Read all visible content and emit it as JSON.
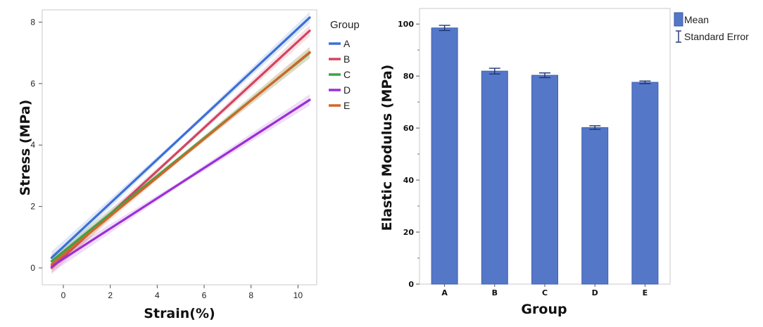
{
  "chart_data": [
    {
      "type": "line",
      "xlabel": "Strain(%)",
      "ylabel": "Stress (MPa)",
      "xlim": [
        -0.9,
        10.8
      ],
      "ylim": [
        -0.55,
        8.4
      ],
      "xticks": [
        "0",
        "2",
        "4",
        "6",
        "8",
        "10"
      ],
      "yticks": [
        "0",
        "2",
        "4",
        "6",
        "8"
      ],
      "legend_title": "Group",
      "legend_position": "right",
      "grid": false,
      "x_range": [
        -0.5,
        10.5
      ],
      "series": [
        {
          "name": "A",
          "color": "#3c6fd6",
          "y_start": 0.33,
          "y_end": 8.15
        },
        {
          "name": "B",
          "color": "#d14560",
          "y_start": 0.0,
          "y_end": 7.72
        },
        {
          "name": "C",
          "color": "#3aa444",
          "y_start": 0.22,
          "y_end": 7.0
        },
        {
          "name": "D",
          "color": "#9b2fd6",
          "y_start": 0.05,
          "y_end": 5.47
        },
        {
          "name": "E",
          "color": "#d0672a",
          "y_start": 0.12,
          "y_end": 7.02
        }
      ]
    },
    {
      "type": "bar",
      "categories": [
        "A",
        "B",
        "C",
        "D",
        "E"
      ],
      "values": [
        98.5,
        81.9,
        80.3,
        60.2,
        77.6
      ],
      "errors": [
        1.0,
        1.1,
        0.9,
        0.7,
        0.5
      ],
      "xlabel": "Group",
      "ylabel": "Elastic Modulus (MPa)",
      "ylim": [
        0,
        106
      ],
      "yticks": [
        "0",
        "20",
        "40",
        "60",
        "80",
        "100"
      ],
      "bar_color": "#5577c8",
      "legend": {
        "mean_label": "Mean",
        "error_label": "Standard Error",
        "position": "right"
      },
      "grid": false
    }
  ]
}
